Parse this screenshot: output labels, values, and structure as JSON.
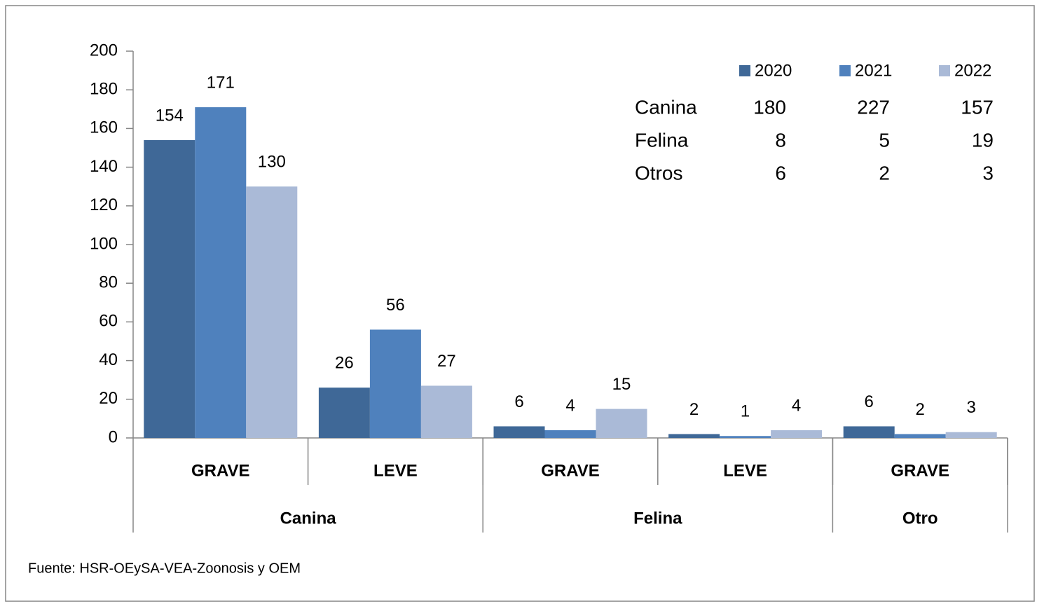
{
  "chart_data": {
    "type": "bar",
    "groups": [
      {
        "name": "Canina",
        "categories": [
          "GRAVE",
          "LEVE"
        ]
      },
      {
        "name": "Felina",
        "categories": [
          "GRAVE",
          "LEVE"
        ]
      },
      {
        "name": "Otro",
        "categories": [
          "GRAVE"
        ]
      }
    ],
    "series": [
      {
        "name": "2020",
        "color": "#3f6897",
        "values": [
          154,
          26,
          6,
          2,
          6
        ]
      },
      {
        "name": "2021",
        "color": "#4f81bd",
        "values": [
          171,
          56,
          4,
          1,
          2
        ]
      },
      {
        "name": "2022",
        "color": "#aabad7",
        "values": [
          130,
          27,
          15,
          4,
          3
        ]
      }
    ],
    "ylim": [
      0,
      200
    ],
    "yticks": [
      0,
      20,
      40,
      60,
      80,
      100,
      120,
      140,
      160,
      180,
      200
    ],
    "legend": "top-right",
    "table": {
      "rows": [
        {
          "label": "Canina",
          "values": [
            180,
            227,
            157
          ]
        },
        {
          "label": "Felina",
          "values": [
            8,
            5,
            19
          ]
        },
        {
          "label": "Otros",
          "values": [
            6,
            2,
            3
          ]
        }
      ]
    },
    "source": "Fuente: HSR-OEySA-VEA-Zoonosis y OEM"
  }
}
